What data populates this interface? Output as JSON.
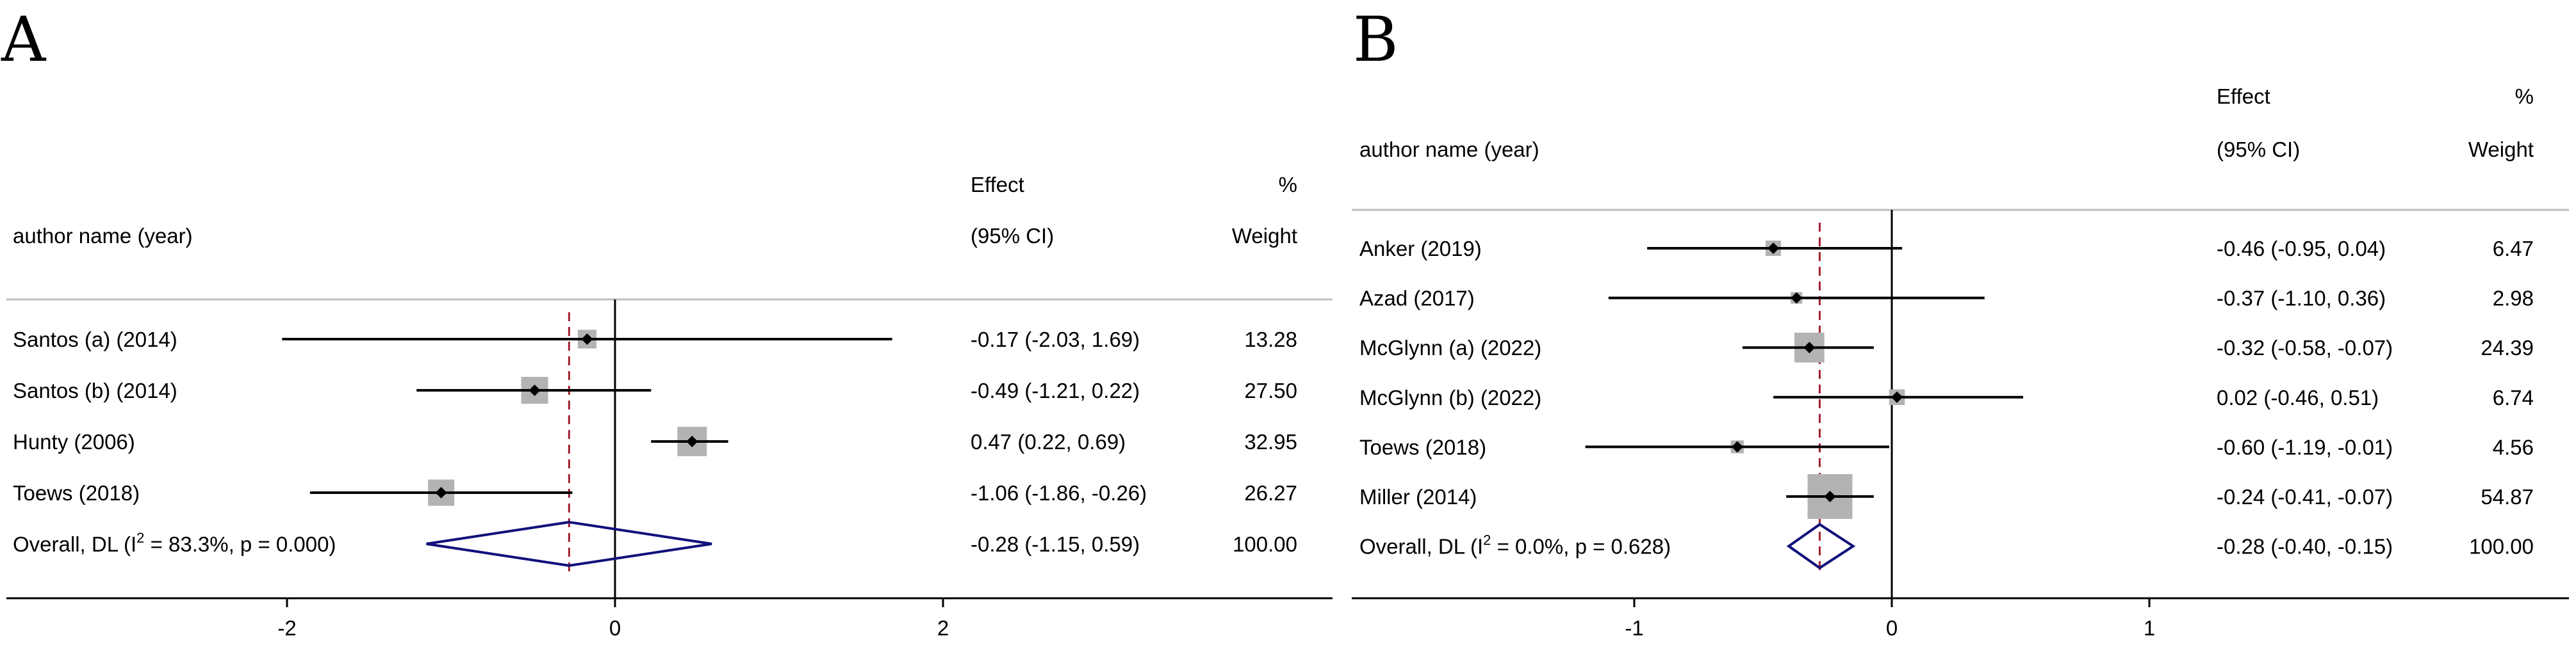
{
  "chart_data": [
    {
      "panel_label": "A",
      "type": "forest",
      "columns": {
        "study": "author name (year)",
        "effect_line1": "Effect",
        "effect_line2": "(95% CI)",
        "weight_line1": "%",
        "weight_line2": "Weight"
      },
      "studies": [
        {
          "label": "Santos (a) (2014)",
          "effect": -0.17,
          "lower": -2.03,
          "upper": 1.69,
          "ci_text": "-0.17 (-2.03, 1.69)",
          "weight": 13.28,
          "weight_text": "13.28"
        },
        {
          "label": "Santos (b) (2014)",
          "effect": -0.49,
          "lower": -1.21,
          "upper": 0.22,
          "ci_text": "-0.49 (-1.21, 0.22)",
          "weight": 27.5,
          "weight_text": "27.50"
        },
        {
          "label": "Hunty (2006)",
          "effect": 0.47,
          "lower": 0.22,
          "upper": 0.69,
          "ci_text": "0.47 (0.22, 0.69)",
          "weight": 32.95,
          "weight_text": "32.95"
        },
        {
          "label": "Toews (2018)",
          "effect": -1.06,
          "lower": -1.86,
          "upper": -0.26,
          "ci_text": "-1.06 (-1.86, -0.26)",
          "weight": 26.27,
          "weight_text": "26.27"
        }
      ],
      "overall": {
        "label_pre": "Overall, DL (I",
        "label_sup": "2",
        "label_post": " = 83.3%, p = 0.000)",
        "effect": -0.28,
        "lower": -1.15,
        "upper": 0.59,
        "ci_text": "-0.28 (-1.15, 0.59)",
        "weight_text": "100.00"
      },
      "x_ticks": [
        -2,
        0,
        2
      ],
      "x_tick_labels": [
        "-2",
        "0",
        "2"
      ],
      "xlim": [
        -3.5,
        4.4
      ],
      "null_line": 0
    },
    {
      "panel_label": "B",
      "type": "forest",
      "columns": {
        "study": "author name (year)",
        "effect_line1": "Effect",
        "effect_line2": "(95% CI)",
        "weight_line1": "%",
        "weight_line2": "Weight"
      },
      "studies": [
        {
          "label": "Anker (2019)",
          "effect": -0.46,
          "lower": -0.95,
          "upper": 0.04,
          "ci_text": "-0.46 (-0.95, 0.04)",
          "weight": 6.47,
          "weight_text": "6.47"
        },
        {
          "label": "Azad (2017)",
          "effect": -0.37,
          "lower": -1.1,
          "upper": 0.36,
          "ci_text": "-0.37 (-1.10, 0.36)",
          "weight": 2.98,
          "weight_text": "2.98"
        },
        {
          "label": "McGlynn (a) (2022)",
          "effect": -0.32,
          "lower": -0.58,
          "upper": -0.07,
          "ci_text": "-0.32 (-0.58, -0.07)",
          "weight": 24.39,
          "weight_text": "24.39"
        },
        {
          "label": "McGlynn (b) (2022)",
          "effect": 0.02,
          "lower": -0.46,
          "upper": 0.51,
          "ci_text": "0.02 (-0.46, 0.51)",
          "weight": 6.74,
          "weight_text": "6.74"
        },
        {
          "label": "Toews (2018)",
          "effect": -0.6,
          "lower": -1.19,
          "upper": -0.01,
          "ci_text": "-0.60 (-1.19, -0.01)",
          "weight": 4.56,
          "weight_text": "4.56"
        },
        {
          "label": "Miller (2014)",
          "effect": -0.24,
          "lower": -0.41,
          "upper": -0.07,
          "ci_text": "-0.24 (-0.41, -0.07)",
          "weight": 54.87,
          "weight_text": "54.87"
        }
      ],
      "overall": {
        "label_pre": "Overall, DL (I",
        "label_sup": "2",
        "label_post": " = 0.0%, p = 0.628)",
        "effect": -0.28,
        "lower": -0.4,
        "upper": -0.15,
        "ci_text": "-0.28 (-0.40, -0.15)",
        "weight_text": "100.00"
      },
      "x_ticks": [
        -1,
        0,
        1
      ],
      "x_tick_labels": [
        "-1",
        "0",
        "1"
      ],
      "xlim": [
        -1.95,
        1.55
      ],
      "null_line": 0
    }
  ],
  "colors": {
    "line": "#000000",
    "box": "#b3b3b3",
    "diamond": "#10107a",
    "overall_line": "#a02030",
    "separator": "#bfbfbf"
  }
}
